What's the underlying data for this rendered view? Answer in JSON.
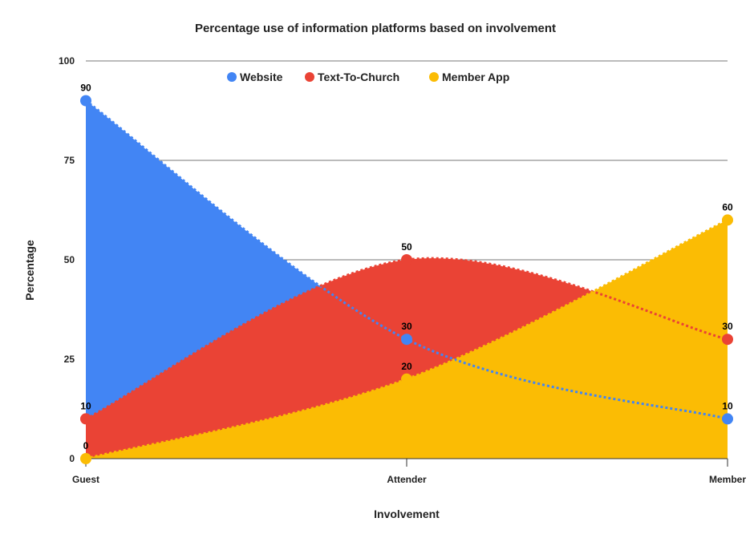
{
  "chart_data": {
    "type": "area",
    "title": "Percentage use of information platforms based on involvement",
    "xlabel": "Involvement",
    "ylabel": "Percentage",
    "categories": [
      "Guest",
      "Attender",
      "Member"
    ],
    "ylim": [
      0,
      100
    ],
    "yticks": [
      "0",
      "25",
      "50",
      "75",
      "100"
    ],
    "grid": true,
    "legend_position": "top",
    "series": [
      {
        "name": "Website",
        "color": "#4285f4",
        "values": [
          90,
          30,
          10
        ],
        "labels": [
          "90",
          "30",
          "10"
        ]
      },
      {
        "name": "Text-To-Church",
        "color": "#ea4335",
        "values": [
          10,
          50,
          30
        ],
        "labels": [
          "10",
          "50",
          "30"
        ]
      },
      {
        "name": "Member App",
        "color": "#fbbc04",
        "values": [
          0,
          20,
          60
        ],
        "labels": [
          "0",
          "20",
          "60"
        ]
      }
    ]
  }
}
